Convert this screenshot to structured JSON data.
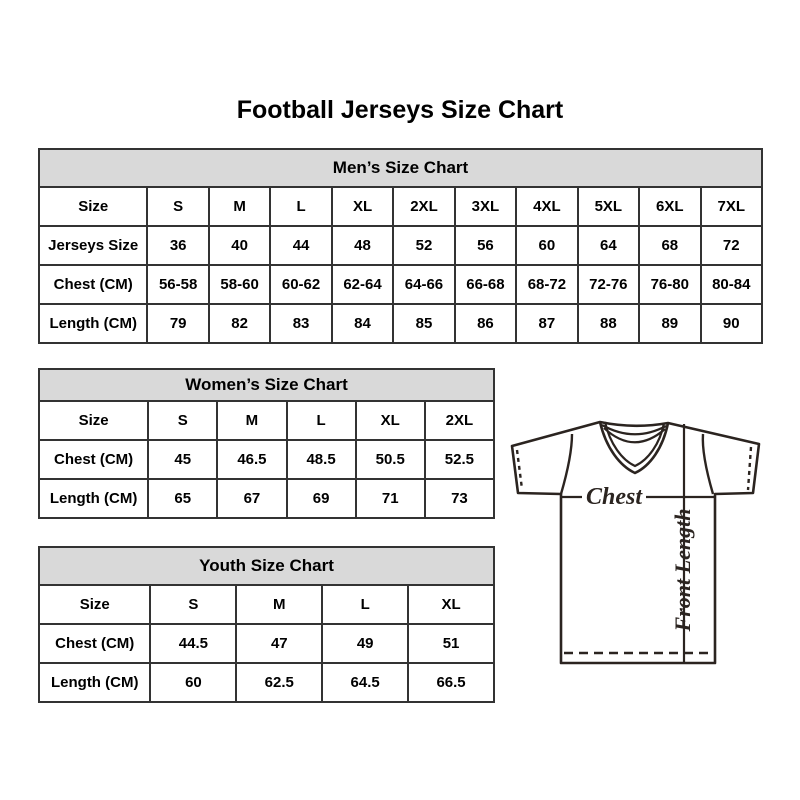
{
  "page_title": "Football Jerseys Size Chart",
  "tables": [
    {
      "id": "mens",
      "title": "Men’s Size Chart",
      "rows": [
        [
          "Size",
          "S",
          "M",
          "L",
          "XL",
          "2XL",
          "3XL",
          "4XL",
          "5XL",
          "6XL",
          "7XL"
        ],
        [
          "Jerseys Size",
          "36",
          "40",
          "44",
          "48",
          "52",
          "56",
          "60",
          "64",
          "68",
          "72"
        ],
        [
          "Chest (CM)",
          "56-58",
          "58-60",
          "60-62",
          "62-64",
          "64-66",
          "66-68",
          "68-72",
          "72-76",
          "76-80",
          "80-84"
        ],
        [
          "Length (CM)",
          "79",
          "82",
          "83",
          "84",
          "85",
          "86",
          "87",
          "88",
          "89",
          "90"
        ]
      ]
    },
    {
      "id": "womens",
      "title": "Women’s Size Chart",
      "rows": [
        [
          "Size",
          "S",
          "M",
          "L",
          "XL",
          "2XL"
        ],
        [
          "Chest (CM)",
          "45",
          "46.5",
          "48.5",
          "50.5",
          "52.5"
        ],
        [
          "Length (CM)",
          "65",
          "67",
          "69",
          "71",
          "73"
        ]
      ]
    },
    {
      "id": "youth",
      "title": "Youth Size Chart",
      "rows": [
        [
          "Size",
          "S",
          "M",
          "L",
          "XL"
        ],
        [
          "Chest (CM)",
          "44.5",
          "47",
          "49",
          "51"
        ],
        [
          "Length (CM)",
          "60",
          "62.5",
          "64.5",
          "66.5"
        ]
      ]
    }
  ],
  "diagram": {
    "chest_label": "Chest",
    "front_length_label": "Front Length"
  },
  "colors": {
    "header_fill": "#d9d9d9",
    "table_border": "#333333",
    "text": "#000000",
    "diagram_line": "#2b2420"
  }
}
